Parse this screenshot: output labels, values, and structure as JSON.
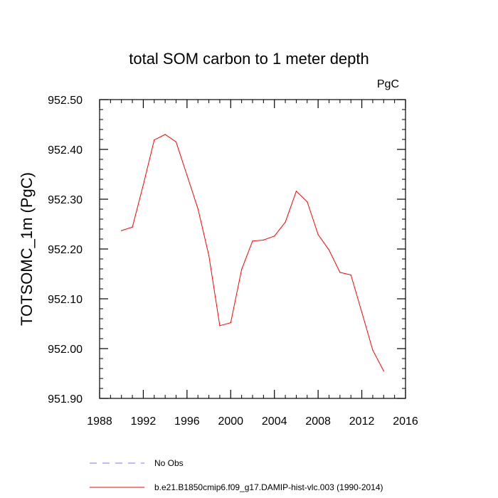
{
  "chart_data": {
    "type": "line",
    "title": "total SOM carbon to 1 meter depth",
    "units": "PgC",
    "xlabel": "",
    "ylabel": "TOTSOMC_1m  (PgC)",
    "xlim": [
      1988,
      2016
    ],
    "ylim": [
      951.9,
      952.5
    ],
    "xticks": [
      1988,
      1992,
      1996,
      2000,
      2004,
      2008,
      2012,
      2016
    ],
    "xtick_labels": [
      "1988",
      "1992",
      "1996",
      "2000",
      "2004",
      "2008",
      "2012",
      "2016"
    ],
    "yticks": [
      951.9,
      952.0,
      952.1,
      952.2,
      952.3,
      952.4,
      952.5
    ],
    "ytick_labels": [
      "951.90",
      "952.00",
      "952.10",
      "952.20",
      "952.30",
      "952.40",
      "952.50"
    ],
    "grid": false,
    "series": [
      {
        "name": "b.e21.B1850cmip6.f09_g17.DAMIP-hist-vlc.003 (1990-2014)",
        "color": "#ff0000",
        "style": "solid",
        "x": [
          1990,
          1991,
          1992,
          1993,
          1994,
          1995,
          1996,
          1997,
          1998,
          1999,
          2000,
          2001,
          2002,
          2003,
          2004,
          2005,
          2006,
          2007,
          2008,
          2009,
          2010,
          2011,
          2012,
          2013,
          2014
        ],
        "y": [
          952.237,
          952.244,
          952.329,
          952.419,
          952.43,
          952.415,
          952.348,
          952.281,
          952.187,
          952.046,
          952.052,
          952.159,
          952.216,
          952.218,
          952.226,
          952.254,
          952.316,
          952.295,
          952.229,
          952.198,
          952.153,
          952.148,
          952.073,
          951.997,
          951.955
        ]
      }
    ],
    "legend": [
      {
        "label": "No Obs",
        "color": "#7777ff",
        "style": "dashed"
      },
      {
        "label": "b.e21.B1850cmip6.f09_g17.DAMIP-hist-vlc.003 (1990-2014)",
        "color": "#ff0000",
        "style": "solid"
      }
    ],
    "legend_position": "bottom"
  }
}
